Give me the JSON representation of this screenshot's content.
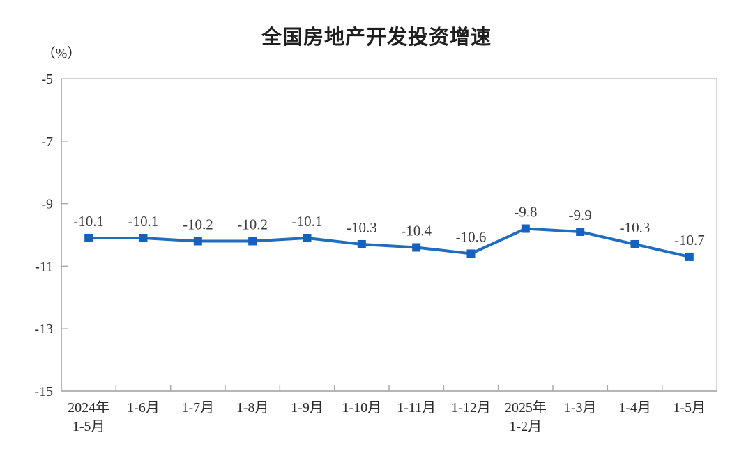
{
  "chart_data": {
    "type": "line",
    "title": "全国房地产开发投资增速",
    "unit_label": "（%）",
    "categories": [
      "2024年\n1-5月",
      "1-6月",
      "1-7月",
      "1-8月",
      "1-9月",
      "1-10月",
      "1-11月",
      "1-12月",
      "2025年\n1-2月",
      "1-3月",
      "1-4月",
      "1-5月"
    ],
    "values": [
      -10.1,
      -10.1,
      -10.2,
      -10.2,
      -10.1,
      -10.3,
      -10.4,
      -10.6,
      -9.8,
      -9.9,
      -10.3,
      -10.7
    ],
    "data_labels": [
      "-10.1",
      "-10.1",
      "-10.2",
      "-10.2",
      "-10.1",
      "-10.3",
      "-10.4",
      "-10.6",
      "-9.8",
      "-9.9",
      "-10.3",
      "-10.7"
    ],
    "ylim": [
      -15,
      -5
    ],
    "yticks": [
      -5,
      -7,
      -9,
      -11,
      -13,
      -15
    ],
    "grid": false,
    "legend": "none",
    "line_color": "#1e6dbf",
    "marker_color": "#1561c2",
    "marker_shape": "square",
    "border_color": "#c6c6c6",
    "axis_color": "#a8a8a8"
  }
}
